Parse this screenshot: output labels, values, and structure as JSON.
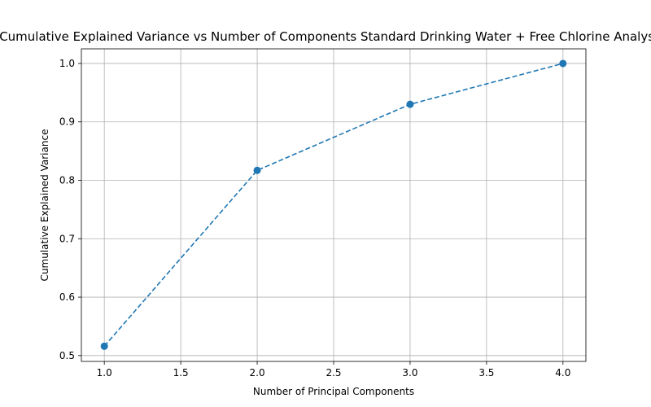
{
  "chart_data": {
    "type": "line",
    "title": "Cumulative Explained Variance vs Number of Components Standard Drinking Water + Free Chlorine Analysis.",
    "xlabel": "Number of Principal Components",
    "ylabel": "Cumulative Explained Variance",
    "xlim": [
      0.85,
      4.15
    ],
    "ylim": [
      0.49,
      1.025
    ],
    "xticks": [
      "1.0",
      "1.5",
      "2.0",
      "2.5",
      "3.0",
      "3.5",
      "4.0"
    ],
    "yticks": [
      "0.5",
      "0.6",
      "0.7",
      "0.8",
      "0.9",
      "1.0"
    ],
    "grid": true,
    "series": [
      {
        "x": [
          1,
          2,
          3,
          4
        ],
        "y": [
          0.516,
          0.817,
          0.93,
          1.0
        ],
        "color": "#1f77b4",
        "linestyle": "dashed",
        "marker": "circle"
      }
    ]
  }
}
